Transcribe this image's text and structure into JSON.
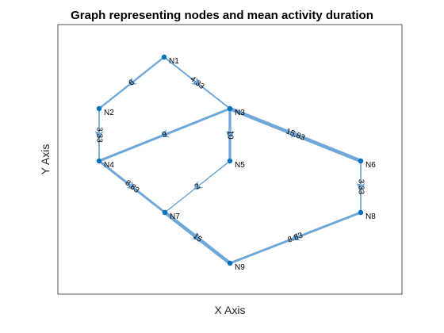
{
  "figure": {
    "title": "Graph representing nodes and mean activity duration",
    "xlabel": "X Axis",
    "ylabel": "Y Axis"
  },
  "colors": {
    "edge": "#6fa8d8",
    "node": "#0072bd",
    "frame": "#262626"
  },
  "graph": {
    "nodes": [
      {
        "id": "N1",
        "label": "N1"
      },
      {
        "id": "N2",
        "label": "N2"
      },
      {
        "id": "N3",
        "label": "N3"
      },
      {
        "id": "N4",
        "label": "N4"
      },
      {
        "id": "N5",
        "label": "N5"
      },
      {
        "id": "N6",
        "label": "N6"
      },
      {
        "id": "N7",
        "label": "N7"
      },
      {
        "id": "N8",
        "label": "N8"
      },
      {
        "id": "N9",
        "label": "N9"
      }
    ],
    "edges": [
      {
        "from": "N1",
        "to": "N2",
        "weight": 6,
        "label": "6"
      },
      {
        "from": "N1",
        "to": "N3",
        "weight": 4.33,
        "label": "4.33"
      },
      {
        "from": "N2",
        "to": "N4",
        "weight": 3.33,
        "label": "3.33"
      },
      {
        "from": "N3",
        "to": "N4",
        "weight": 9,
        "label": "9"
      },
      {
        "from": "N3",
        "to": "N5",
        "weight": 10,
        "label": "10"
      },
      {
        "from": "N3",
        "to": "N6",
        "weight": 15.83,
        "label": "15.83"
      },
      {
        "from": "N4",
        "to": "N7",
        "weight": 8.83,
        "label": "8.83"
      },
      {
        "from": "N5",
        "to": "N7",
        "weight": 2,
        "label": "2"
      },
      {
        "from": "N6",
        "to": "N8",
        "weight": 3.33,
        "label": "3.33"
      },
      {
        "from": "N7",
        "to": "N9",
        "weight": 15,
        "label": "15"
      },
      {
        "from": "N8",
        "to": "N9",
        "weight": 8.83,
        "label": "8.83"
      }
    ]
  }
}
